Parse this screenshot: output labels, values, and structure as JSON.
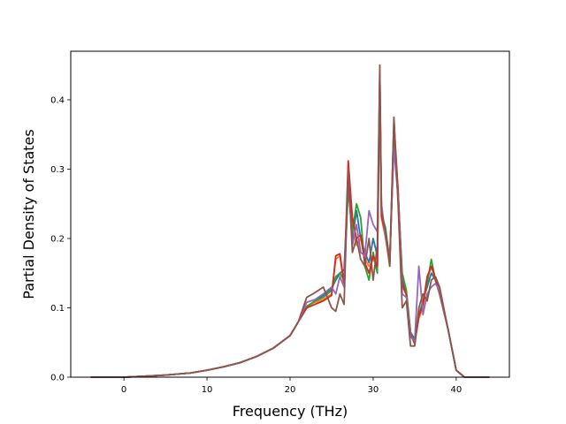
{
  "chart_data": {
    "type": "line",
    "xlabel": "Frequency (THz)",
    "ylabel": "Partial Density of States",
    "xlim": [
      -6.4,
      46.4
    ],
    "ylim": [
      0,
      0.47
    ],
    "xticks": [
      0,
      10,
      20,
      30,
      40
    ],
    "yticks": [
      0.0,
      0.1,
      0.2,
      0.3,
      0.4
    ],
    "grid": false,
    "legend": "none",
    "series": [
      {
        "color": "#1f77b4",
        "x": [
          -4,
          0,
          2,
          5,
          8,
          10,
          12,
          14,
          16,
          18,
          20,
          21,
          22,
          23,
          24,
          25,
          25.5,
          26,
          26.5,
          27,
          27.5,
          28,
          28.5,
          29,
          29.5,
          30,
          30.5,
          30.8,
          31,
          31.5,
          32,
          32.5,
          33,
          33.5,
          34,
          34.5,
          35,
          35.5,
          36,
          36.5,
          37,
          37.5,
          38,
          39,
          40,
          41,
          44
        ],
        "y": [
          0,
          0,
          0.001,
          0.003,
          0.006,
          0.01,
          0.015,
          0.021,
          0.03,
          0.042,
          0.06,
          0.08,
          0.1,
          0.11,
          0.118,
          0.128,
          0.14,
          0.15,
          0.155,
          0.28,
          0.2,
          0.24,
          0.2,
          0.18,
          0.165,
          0.2,
          0.175,
          0.42,
          0.24,
          0.21,
          0.17,
          0.34,
          0.27,
          0.14,
          0.12,
          0.065,
          0.055,
          0.09,
          0.11,
          0.13,
          0.15,
          0.14,
          0.12,
          0.07,
          0.01,
          0,
          0
        ]
      },
      {
        "color": "#ff7f0e",
        "x": [
          -4,
          0,
          2,
          5,
          8,
          10,
          12,
          14,
          16,
          18,
          20,
          21,
          22,
          23,
          24,
          25,
          25.5,
          26,
          26.5,
          27,
          27.5,
          28,
          28.5,
          29,
          29.5,
          30,
          30.5,
          30.8,
          31,
          31.5,
          32,
          32.5,
          33,
          33.5,
          34,
          34.5,
          35,
          35.5,
          36,
          36.5,
          37,
          37.5,
          38,
          39,
          40,
          41,
          44
        ],
        "y": [
          0,
          0,
          0.001,
          0.003,
          0.006,
          0.01,
          0.015,
          0.021,
          0.03,
          0.042,
          0.06,
          0.08,
          0.102,
          0.108,
          0.112,
          0.12,
          0.17,
          0.175,
          0.13,
          0.3,
          0.22,
          0.19,
          0.2,
          0.17,
          0.16,
          0.17,
          0.16,
          0.44,
          0.23,
          0.2,
          0.16,
          0.36,
          0.27,
          0.13,
          0.12,
          0.06,
          0.05,
          0.085,
          0.1,
          0.14,
          0.16,
          0.14,
          0.12,
          0.07,
          0.01,
          0,
          0
        ]
      },
      {
        "color": "#2ca02c",
        "x": [
          -4,
          0,
          2,
          5,
          8,
          10,
          12,
          14,
          16,
          18,
          20,
          21,
          22,
          23,
          24,
          25,
          25.5,
          26,
          26.5,
          27,
          27.5,
          28,
          28.5,
          29,
          29.5,
          30,
          30.5,
          30.8,
          31,
          31.5,
          32,
          32.5,
          33,
          33.5,
          34,
          34.5,
          35,
          35.5,
          36,
          36.5,
          37,
          37.5,
          38,
          39,
          40,
          41,
          44
        ],
        "y": [
          0,
          0,
          0.001,
          0.003,
          0.006,
          0.01,
          0.015,
          0.021,
          0.03,
          0.042,
          0.06,
          0.08,
          0.102,
          0.11,
          0.115,
          0.125,
          0.145,
          0.15,
          0.14,
          0.27,
          0.21,
          0.25,
          0.23,
          0.16,
          0.14,
          0.18,
          0.15,
          0.43,
          0.235,
          0.215,
          0.165,
          0.345,
          0.26,
          0.15,
          0.125,
          0.065,
          0.05,
          0.09,
          0.11,
          0.135,
          0.17,
          0.14,
          0.12,
          0.07,
          0.01,
          0,
          0
        ]
      },
      {
        "color": "#d62728",
        "x": [
          -4,
          0,
          2,
          5,
          8,
          10,
          12,
          14,
          16,
          18,
          20,
          21,
          22,
          23,
          24,
          25,
          25.5,
          26,
          26.5,
          27,
          27.5,
          28,
          28.5,
          29,
          29.5,
          30,
          30.5,
          30.8,
          31,
          31.5,
          32,
          32.5,
          33,
          33.5,
          34,
          34.5,
          35,
          35.5,
          36,
          36.5,
          37,
          37.5,
          38,
          39,
          40,
          41,
          44
        ],
        "y": [
          0,
          0,
          0.001,
          0.003,
          0.006,
          0.01,
          0.015,
          0.021,
          0.03,
          0.042,
          0.06,
          0.08,
          0.1,
          0.105,
          0.11,
          0.118,
          0.175,
          0.178,
          0.135,
          0.312,
          0.23,
          0.2,
          0.205,
          0.165,
          0.15,
          0.175,
          0.16,
          0.43,
          0.232,
          0.205,
          0.165,
          0.37,
          0.268,
          0.135,
          0.118,
          0.062,
          0.048,
          0.088,
          0.105,
          0.145,
          0.16,
          0.142,
          0.122,
          0.07,
          0.01,
          0,
          0
        ]
      },
      {
        "color": "#9467bd",
        "x": [
          -4,
          0,
          2,
          5,
          8,
          10,
          12,
          14,
          16,
          18,
          20,
          21,
          22,
          23,
          24,
          25,
          25.5,
          26,
          26.5,
          27,
          27.5,
          28,
          28.5,
          29,
          29.5,
          30,
          30.5,
          30.8,
          31,
          31.5,
          32,
          32.5,
          33,
          33.5,
          34,
          34.5,
          35,
          35.5,
          36,
          36.5,
          37,
          37.5,
          38,
          39,
          40,
          41,
          44
        ],
        "y": [
          0,
          0,
          0.001,
          0.003,
          0.006,
          0.01,
          0.015,
          0.021,
          0.03,
          0.042,
          0.06,
          0.08,
          0.108,
          0.112,
          0.12,
          0.13,
          0.12,
          0.145,
          0.13,
          0.29,
          0.19,
          0.22,
          0.18,
          0.175,
          0.24,
          0.22,
          0.21,
          0.44,
          0.25,
          0.2,
          0.175,
          0.33,
          0.26,
          0.12,
          0.115,
          0.058,
          0.052,
          0.16,
          0.09,
          0.12,
          0.13,
          0.135,
          0.125,
          0.07,
          0.01,
          0,
          0
        ]
      },
      {
        "color": "#8c564b",
        "x": [
          -4,
          0,
          2,
          5,
          8,
          10,
          12,
          14,
          16,
          18,
          20,
          21,
          22,
          23,
          24,
          25,
          25.5,
          26,
          26.5,
          27,
          27.5,
          28,
          28.5,
          29,
          29.5,
          30,
          30.5,
          30.8,
          31,
          31.5,
          32,
          32.5,
          33,
          33.5,
          34,
          34.5,
          35,
          35.5,
          36,
          36.5,
          37,
          37.5,
          38,
          39,
          40,
          41,
          44
        ],
        "y": [
          0,
          0,
          0.001,
          0.003,
          0.006,
          0.01,
          0.015,
          0.021,
          0.03,
          0.042,
          0.06,
          0.08,
          0.115,
          0.122,
          0.13,
          0.1,
          0.095,
          0.12,
          0.105,
          0.3,
          0.18,
          0.2,
          0.17,
          0.16,
          0.2,
          0.14,
          0.19,
          0.45,
          0.24,
          0.21,
          0.16,
          0.375,
          0.25,
          0.1,
          0.11,
          0.045,
          0.045,
          0.1,
          0.12,
          0.11,
          0.14,
          0.145,
          0.13,
          0.07,
          0.01,
          0,
          0
        ]
      }
    ]
  }
}
